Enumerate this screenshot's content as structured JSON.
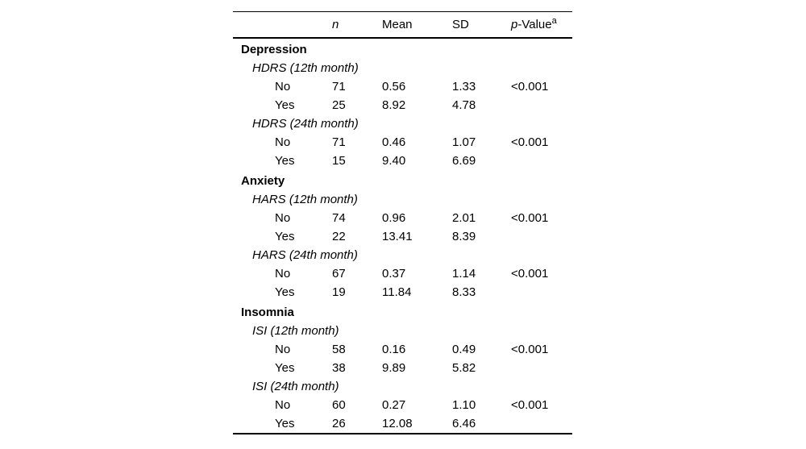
{
  "page": {
    "background_color": "#ffffff",
    "text_color": "#000000"
  },
  "table": {
    "header": {
      "label": "",
      "n": "n",
      "mean": "Mean",
      "sd": "SD",
      "p_prefix": "p",
      "p_rest": "-Value",
      "p_sup": "a"
    },
    "rows": [
      {
        "type": "section",
        "label": "Depression",
        "n": "",
        "mean": "",
        "sd": "",
        "p": ""
      },
      {
        "type": "subsection",
        "label": "HDRS (12th month)",
        "n": "",
        "mean": "",
        "sd": "",
        "p": ""
      },
      {
        "type": "data",
        "label": "No",
        "n": "71",
        "mean": "0.56",
        "sd": "1.33",
        "p": "<0.001"
      },
      {
        "type": "data",
        "label": "Yes",
        "n": "25",
        "mean": "8.92",
        "sd": "4.78",
        "p": ""
      },
      {
        "type": "subsection",
        "label": "HDRS (24th month)",
        "n": "",
        "mean": "",
        "sd": "",
        "p": ""
      },
      {
        "type": "data",
        "label": "No",
        "n": "71",
        "mean": "0.46",
        "sd": "1.07",
        "p": "<0.001"
      },
      {
        "type": "data",
        "label": "Yes",
        "n": "15",
        "mean": "9.40",
        "sd": "6.69",
        "p": ""
      },
      {
        "type": "section",
        "label": "Anxiety",
        "n": "",
        "mean": "",
        "sd": "",
        "p": ""
      },
      {
        "type": "subsection",
        "label": "HARS (12th month)",
        "n": "",
        "mean": "",
        "sd": "",
        "p": ""
      },
      {
        "type": "data",
        "label": "No",
        "n": "74",
        "mean": "0.96",
        "sd": "2.01",
        "p": "<0.001"
      },
      {
        "type": "data",
        "label": "Yes",
        "n": "22",
        "mean": "13.41",
        "sd": "8.39",
        "p": ""
      },
      {
        "type": "subsection",
        "label": "HARS (24th month)",
        "n": "",
        "mean": "",
        "sd": "",
        "p": ""
      },
      {
        "type": "data",
        "label": "No",
        "n": "67",
        "mean": "0.37",
        "sd": "1.14",
        "p": "<0.001"
      },
      {
        "type": "data",
        "label": "Yes",
        "n": "19",
        "mean": "11.84",
        "sd": "8.33",
        "p": ""
      },
      {
        "type": "section",
        "label": "Insomnia",
        "n": "",
        "mean": "",
        "sd": "",
        "p": ""
      },
      {
        "type": "subsection",
        "label": "ISI (12th month)",
        "n": "",
        "mean": "",
        "sd": "",
        "p": ""
      },
      {
        "type": "data",
        "label": "No",
        "n": "58",
        "mean": "0.16",
        "sd": "0.49",
        "p": "<0.001"
      },
      {
        "type": "data",
        "label": "Yes",
        "n": "38",
        "mean": "9.89",
        "sd": "5.82",
        "p": ""
      },
      {
        "type": "subsection",
        "label": "ISI (24th month)",
        "n": "",
        "mean": "",
        "sd": "",
        "p": ""
      },
      {
        "type": "data",
        "label": "No",
        "n": "60",
        "mean": "0.27",
        "sd": "1.10",
        "p": "<0.001"
      },
      {
        "type": "data",
        "label": "Yes",
        "n": "26",
        "mean": "12.08",
        "sd": "6.46",
        "p": ""
      }
    ]
  }
}
